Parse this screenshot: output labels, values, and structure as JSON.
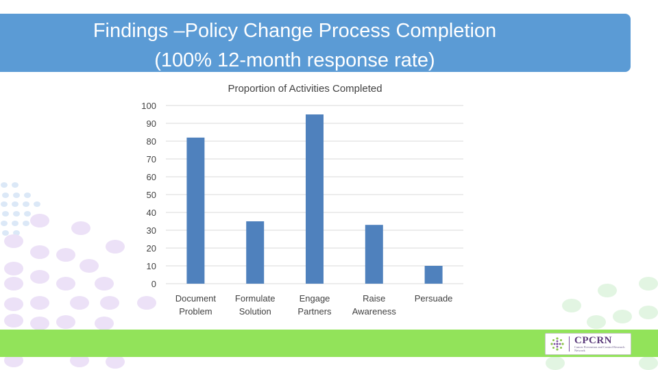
{
  "header": {
    "title_line1": "Findings –Policy Change Process Completion",
    "title_line2": "(100% 12-month response rate)"
  },
  "logo": {
    "name": "CPCRN",
    "tagline": "Cancer Prevention and Control Research Network"
  },
  "colors": {
    "banner": "#5b9bd5",
    "bar": "#4f81bd",
    "band": "#92e35a"
  },
  "chart_data": {
    "type": "bar",
    "title": "Proportion of Activities Completed",
    "categories": [
      [
        "Document",
        "Problem"
      ],
      [
        "Formulate",
        "Solution"
      ],
      [
        "Engage",
        "Partners"
      ],
      [
        "Raise",
        "Awareness"
      ],
      [
        "Persuade"
      ]
    ],
    "values": [
      82,
      35,
      95,
      33,
      10
    ],
    "ylim": [
      0,
      100
    ],
    "yticks": [
      0,
      10,
      20,
      30,
      40,
      50,
      60,
      70,
      80,
      90,
      100
    ],
    "grid": true,
    "legend": "none"
  }
}
